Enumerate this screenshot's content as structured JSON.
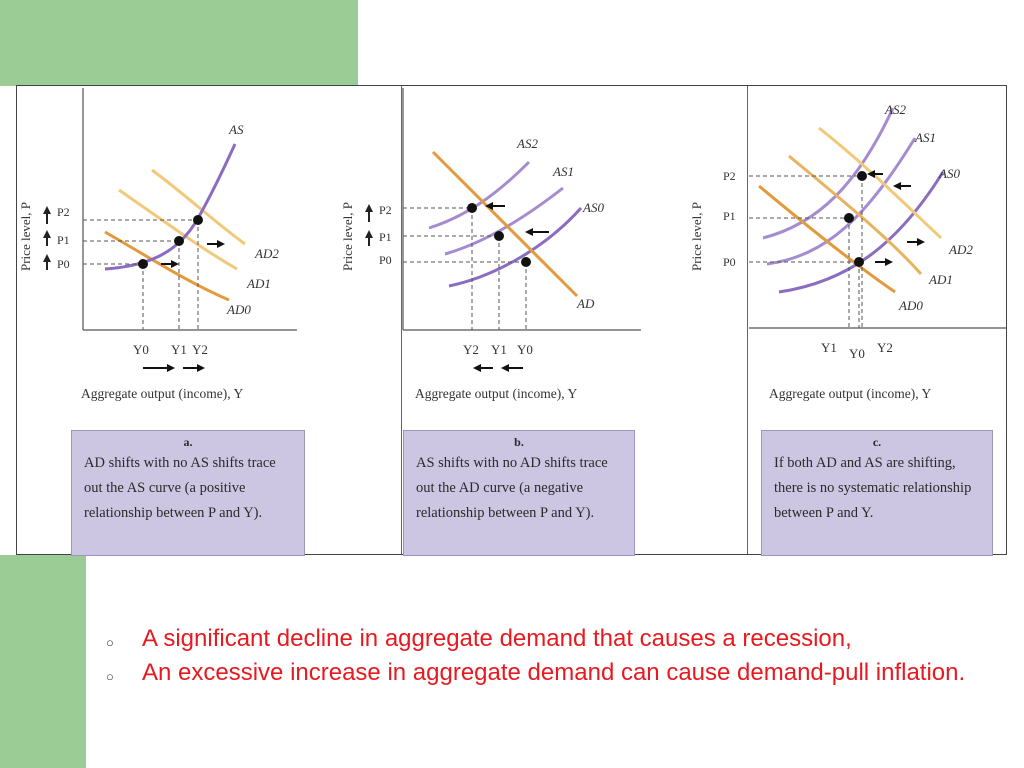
{
  "panels": [
    {
      "id": "a",
      "ylabel": "Price level, P",
      "xlabel": "Aggregate output (income), Y",
      "prices": [
        "P2",
        "P1",
        "P0"
      ],
      "outputs": [
        "Y0",
        "Y1",
        "Y2"
      ],
      "curves": [
        "AS",
        "AD2",
        "AD1",
        "AD0"
      ],
      "caption_letter": "a.",
      "caption_text": "AD shifts with no AS shifts trace out the AS curve (a positive relationship between P and Y)."
    },
    {
      "id": "b",
      "ylabel": "Price level, P",
      "xlabel": "Aggregate output (income), Y",
      "prices": [
        "P2",
        "P1",
        "P0"
      ],
      "outputs": [
        "Y2",
        "Y1",
        "Y0"
      ],
      "curves": [
        "AS2",
        "AS1",
        "AS0",
        "AD"
      ],
      "caption_letter": "b.",
      "caption_text": "AS shifts with no AD shifts trace out the AD curve (a negative relationship between P and Y)."
    },
    {
      "id": "c",
      "ylabel": "Price level, P",
      "xlabel": "Aggregate output (income), Y",
      "prices": [
        "P2",
        "P1",
        "P0"
      ],
      "outputs": [
        "Y1",
        "Y0",
        "Y2"
      ],
      "curves": [
        "AS2",
        "AS1",
        "AS0",
        "AD2",
        "AD1",
        "AD0"
      ],
      "caption_letter": "c.",
      "caption_text": "If both AD and AS are shifting, there is no systematic relationship between P and Y."
    }
  ],
  "bullets": [
    " A significant decline in aggregate demand that causes a recession,",
    " An excessive increase in aggregate demand can cause demand-pull inflation."
  ],
  "colors": {
    "as_curve": "#8a6cc0",
    "as_light": "#a58bd0",
    "ad_dark": "#e29a3c",
    "ad_light": "#f2c97a",
    "caption_bg": "#ccc6e2",
    "bullet_text": "#e8191f",
    "side_green": "#9ccc95"
  }
}
